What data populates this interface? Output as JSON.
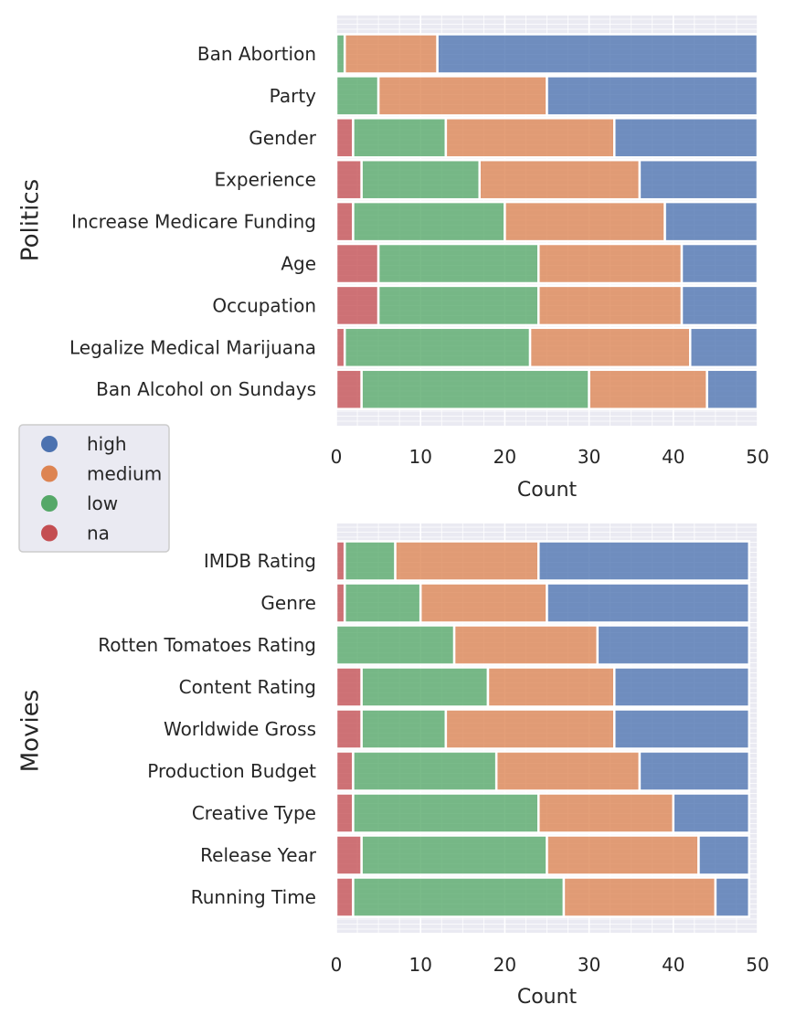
{
  "legend": {
    "entries": [
      {
        "key": "high",
        "label": "high",
        "color": "#4c72b0"
      },
      {
        "key": "medium",
        "label": "medium",
        "color": "#dd8452"
      },
      {
        "key": "low",
        "label": "low",
        "color": "#55a868"
      },
      {
        "key": "na",
        "label": "na",
        "color": "#c44e52"
      }
    ]
  },
  "chart_data": [
    {
      "type": "bar",
      "orientation": "horizontal",
      "stacked": true,
      "title": "Politics",
      "xlabel": "Count",
      "ylabel": "",
      "xlim": [
        0,
        50
      ],
      "xticks": [
        0,
        10,
        20,
        30,
        40,
        50
      ],
      "grid": true,
      "stack_order": [
        "na",
        "low",
        "medium",
        "high"
      ],
      "categories": [
        "Ban Abortion",
        "Party",
        "Gender",
        "Experience",
        "Increase Medicare Funding",
        "Age",
        "Occupation",
        "Legalize Medical Marijuana",
        "Ban Alcohol on Sundays"
      ],
      "series": [
        {
          "name": "na",
          "values": [
            0,
            0,
            2,
            3,
            2,
            5,
            5,
            1,
            3
          ]
        },
        {
          "name": "low",
          "values": [
            1,
            5,
            11,
            14,
            18,
            19,
            19,
            22,
            27
          ]
        },
        {
          "name": "medium",
          "values": [
            11,
            20,
            20,
            19,
            19,
            17,
            17,
            19,
            14
          ]
        },
        {
          "name": "high",
          "values": [
            38,
            25,
            17,
            14,
            11,
            9,
            9,
            8,
            6
          ]
        }
      ]
    },
    {
      "type": "bar",
      "orientation": "horizontal",
      "stacked": true,
      "title": "Movies",
      "xlabel": "Count",
      "ylabel": "",
      "xlim": [
        0,
        50
      ],
      "xticks": [
        0,
        10,
        20,
        30,
        40,
        50
      ],
      "grid": true,
      "stack_order": [
        "na",
        "low",
        "medium",
        "high"
      ],
      "categories": [
        "IMDB Rating",
        "Genre",
        "Rotten Tomatoes Rating",
        "Content Rating",
        "Worldwide Gross",
        "Production Budget",
        "Creative Type",
        "Release Year",
        "Running Time"
      ],
      "series": [
        {
          "name": "na",
          "values": [
            1,
            1,
            0,
            3,
            3,
            2,
            2,
            3,
            2
          ]
        },
        {
          "name": "low",
          "values": [
            6,
            9,
            14,
            15,
            10,
            17,
            22,
            22,
            25
          ]
        },
        {
          "name": "medium",
          "values": [
            17,
            15,
            17,
            15,
            20,
            17,
            16,
            18,
            18
          ]
        },
        {
          "name": "high",
          "values": [
            25,
            24,
            18,
            16,
            16,
            13,
            9,
            6,
            4
          ]
        }
      ]
    }
  ]
}
